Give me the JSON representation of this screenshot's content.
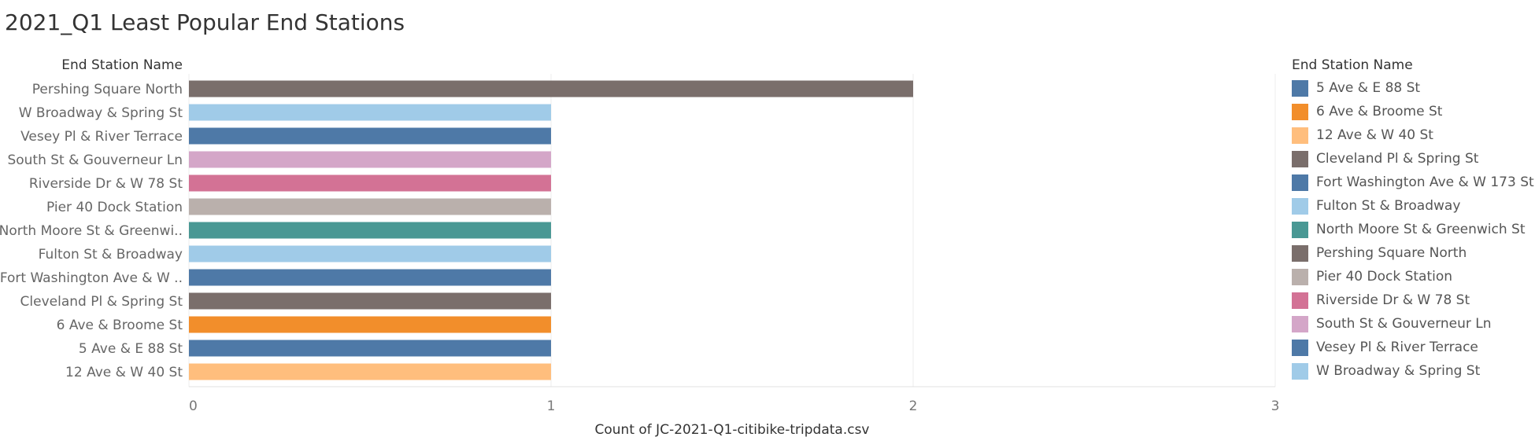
{
  "chart_data": {
    "type": "bar",
    "orientation": "horizontal",
    "title": "2021_Q1 Least Popular End Stations",
    "row_header": "End Station Name",
    "xlabel": "Count of JC-2021-Q1-citibike-tripdata.csv",
    "xlim": [
      0,
      3
    ],
    "xticks": [
      "0",
      "1",
      "2",
      "3"
    ],
    "grid": true,
    "legend_position": "right",
    "legend_title": "End Station Name",
    "categories": [
      "Pershing Square North",
      "W Broadway & Spring St",
      "Vesey Pl & River Terrace",
      "South St & Gouverneur Ln",
      "Riverside Dr & W 78 St",
      "Pier 40 Dock Station",
      "North Moore St & Greenwi..",
      "Fulton St & Broadway",
      "Fort Washington Ave & W ..",
      "Cleveland Pl & Spring St",
      "6 Ave & Broome St",
      "5 Ave & E 88 St",
      "12 Ave & W 40 St"
    ],
    "values": [
      2,
      1,
      1,
      1,
      1,
      1,
      1,
      1,
      1,
      1,
      1,
      1,
      1
    ],
    "bar_colors": [
      "#7a6e6b",
      "#a0cbe8",
      "#4e79a7",
      "#d4a6c8",
      "#d37295",
      "#bab0ac",
      "#499894",
      "#a0cbe8",
      "#4e79a7",
      "#7a6e6b",
      "#f28e2b",
      "#4e79a7",
      "#ffbe7d"
    ],
    "legend": [
      {
        "label": "5 Ave & E 88 St",
        "color": "#4e79a7"
      },
      {
        "label": "6 Ave & Broome St",
        "color": "#f28e2b"
      },
      {
        "label": "12 Ave & W 40 St",
        "color": "#ffbe7d"
      },
      {
        "label": "Cleveland Pl & Spring St",
        "color": "#7a6e6b"
      },
      {
        "label": "Fort Washington Ave & W 173 St",
        "color": "#4e79a7"
      },
      {
        "label": "Fulton St & Broadway",
        "color": "#a0cbe8"
      },
      {
        "label": "North Moore St & Greenwich St",
        "color": "#499894"
      },
      {
        "label": "Pershing Square North",
        "color": "#7a6e6b"
      },
      {
        "label": "Pier 40 Dock Station",
        "color": "#bab0ac"
      },
      {
        "label": "Riverside Dr & W 78 St",
        "color": "#d37295"
      },
      {
        "label": "South St & Gouverneur Ln",
        "color": "#d4a6c8"
      },
      {
        "label": "Vesey Pl & River Terrace",
        "color": "#4e79a7"
      },
      {
        "label": "W Broadway & Spring St",
        "color": "#a0cbe8"
      }
    ]
  }
}
